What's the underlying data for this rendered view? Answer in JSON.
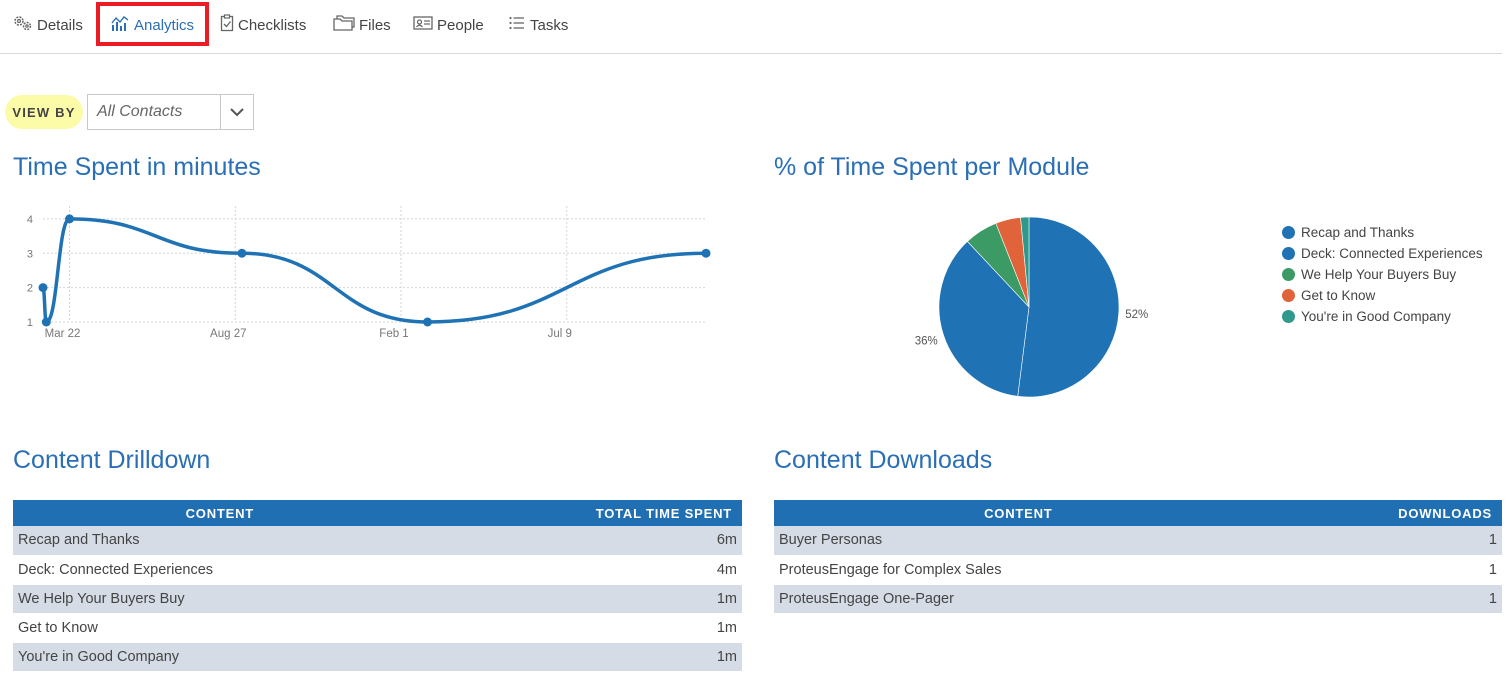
{
  "tabs": [
    {
      "label": "Details",
      "icon": "gears-icon"
    },
    {
      "label": "Analytics",
      "icon": "analytics-icon",
      "active": true
    },
    {
      "label": "Checklists",
      "icon": "clipboard-check-icon"
    },
    {
      "label": "Files",
      "icon": "folders-icon"
    },
    {
      "label": "People",
      "icon": "id-card-icon"
    },
    {
      "label": "Tasks",
      "icon": "list-icon"
    }
  ],
  "view_by": {
    "label": "VIEW BY",
    "selected": "All Contacts"
  },
  "time_spent": {
    "title": "Time Spent in minutes"
  },
  "time_per_module": {
    "title": "% of Time Spent per Module"
  },
  "content_drilldown": {
    "title": "Content Drilldown",
    "columns": [
      "CONTENT",
      "TOTAL TIME SPENT"
    ],
    "rows": [
      [
        "Recap and Thanks",
        "6m"
      ],
      [
        "Deck: Connected Experiences",
        "4m"
      ],
      [
        "We Help Your Buyers Buy",
        "1m"
      ],
      [
        "Get to Know",
        "1m"
      ],
      [
        "You're in Good Company",
        "1m"
      ]
    ]
  },
  "content_downloads": {
    "title": "Content Downloads",
    "columns": [
      "CONTENT",
      "DOWNLOADS"
    ],
    "rows": [
      [
        "Buyer Personas",
        "1"
      ],
      [
        "ProteusEngage for Complex Sales",
        "1"
      ],
      [
        "ProteusEngage One-Pager",
        "1"
      ]
    ]
  },
  "colors": {
    "accent": "#2a6fb5",
    "header": "#1f6fb2",
    "highlight": "#ec1c24",
    "viewby_bg": "#fcfba8"
  },
  "chart_data": [
    {
      "type": "line",
      "title": "Time Spent in minutes",
      "x_ticks": [
        "Mar 22",
        "Aug 27",
        "Feb 1",
        "Jul 9"
      ],
      "y_ticks": [
        1,
        2,
        3,
        4
      ],
      "ylim": [
        1,
        4.2
      ],
      "grid": true,
      "series": [
        {
          "points": [
            {
              "x": 0,
              "y": 2
            },
            {
              "x": 0.5,
              "y": 1
            },
            {
              "x": 4,
              "y": 4
            },
            {
              "x": 30,
              "y": 3
            },
            {
              "x": 58,
              "y": 1
            },
            {
              "x": 100,
              "y": 3
            }
          ]
        }
      ],
      "x_tick_positions": [
        4,
        29,
        54,
        79
      ],
      "xlim": [
        0,
        100
      ]
    },
    {
      "type": "pie",
      "title": "% of Time Spent per Module",
      "legend": "right",
      "slices": [
        {
          "name": "Recap and Thanks",
          "value": 52,
          "label": "52%",
          "color": "#1f73b5"
        },
        {
          "name": "Deck: Connected Experiences",
          "value": 36,
          "label": "36%",
          "color": "#1f73b5"
        },
        {
          "name": "We Help Your Buyers Buy",
          "value": 6,
          "label": "",
          "color": "#3c9a64"
        },
        {
          "name": "Get to Know",
          "value": 4.5,
          "label": "",
          "color": "#e0633a"
        },
        {
          "name": "You're in Good Company",
          "value": 1.5,
          "label": "",
          "color": "#2f9a8c"
        }
      ]
    }
  ]
}
